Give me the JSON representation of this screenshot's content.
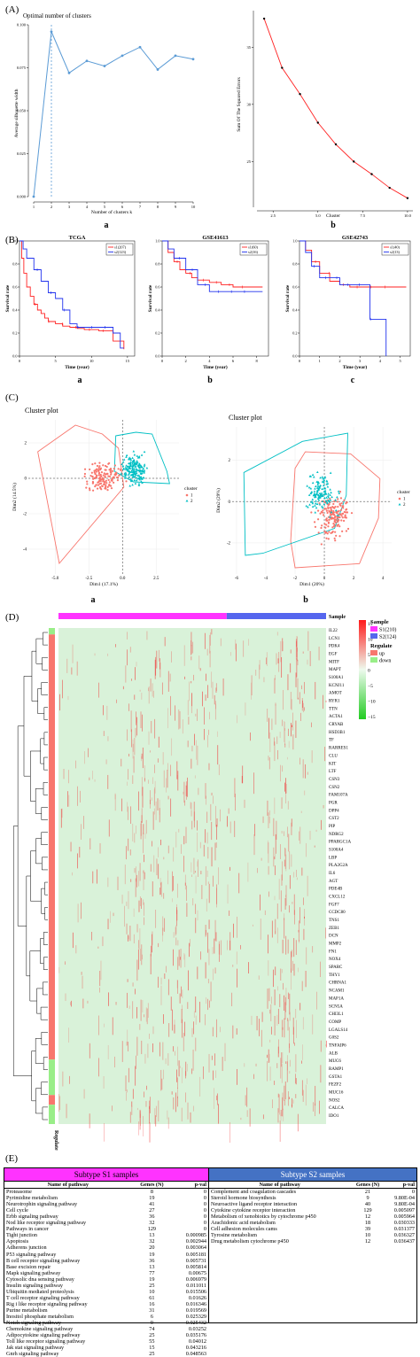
{
  "panel_labels": {
    "A": "(A)",
    "B": "(B)",
    "C": "(C)",
    "D": "(D)",
    "E": "(E)"
  },
  "sub_labels": {
    "a": "a",
    "b": "b",
    "c": "c"
  },
  "colors": {
    "salmon": "#f26d6d",
    "blue_line": "#5b9bd5",
    "red": "#ff2222",
    "blue": "#2233ee",
    "teal": "#00bfc4",
    "s1": "#ff33ff",
    "s2": "#5566ee",
    "up": "#f8766d",
    "down": "#99ee88",
    "heatbg": "#d9f2d9",
    "tab_s1": "#ff33ff",
    "tab_s2": "#4472c4"
  },
  "chart_data": [
    {
      "type": "line",
      "title": "Optimal number of clusters",
      "xlabel": "Number of clusters k",
      "ylabel": "Average silhouette width",
      "x": [
        1,
        2,
        3,
        4,
        5,
        6,
        7,
        8,
        9,
        10
      ],
      "y": [
        0.0,
        0.096,
        0.072,
        0.079,
        0.076,
        0.082,
        0.087,
        0.074,
        0.082,
        0.08
      ],
      "xticks": [
        "1",
        "2",
        "3",
        "4",
        "5",
        "6",
        "7",
        "8",
        "9",
        "10"
      ],
      "yticks": [
        "0.000",
        "0.025",
        "0.050",
        "0.075",
        "0.100"
      ],
      "ylim": [
        0,
        0.1
      ],
      "vline_x": 2
    },
    {
      "type": "line",
      "title": "",
      "xlabel": "Cluster",
      "ylabel": "Sum Of The Squared Errors",
      "x": [
        2,
        3,
        4,
        5,
        6,
        7,
        8,
        9,
        10
      ],
      "y": [
        37.5,
        33.2,
        30.9,
        28.4,
        26.5,
        25.0,
        23.9,
        22.7,
        21.8
      ],
      "xticks": [
        "2.5",
        "5.0",
        "7.5",
        "10.0"
      ],
      "xtick_values": [
        2.5,
        5.0,
        7.5,
        10.0
      ],
      "yticks": [
        "25",
        "30",
        "35"
      ],
      "ytick_values": [
        25,
        30,
        35
      ],
      "xlim": [
        1.6,
        10.3
      ],
      "ylim": [
        21,
        38.2
      ]
    },
    {
      "type": "line",
      "title": "TCGA",
      "xlabel": "Time (year)",
      "ylabel": "Survival rate",
      "xticks": [
        "0",
        "5",
        "10",
        "15"
      ],
      "yticks": [
        "0.0",
        "0.2",
        "0.4",
        "0.6",
        "0.8",
        "1.0"
      ],
      "xlim": [
        0,
        16
      ],
      "ylim": [
        0,
        1
      ],
      "legend": [
        "s1(207)",
        "s2(123)"
      ],
      "series": [
        {
          "name": "s1(207)",
          "x": [
            0,
            0.3,
            0.6,
            1,
            1.5,
            2,
            2.5,
            3,
            3.5,
            4,
            5,
            6,
            7,
            8,
            9,
            10,
            11,
            12,
            13,
            14,
            14.5
          ],
          "y": [
            1,
            0.85,
            0.72,
            0.6,
            0.52,
            0.45,
            0.4,
            0.37,
            0.33,
            0.3,
            0.28,
            0.26,
            0.25,
            0.24,
            0.23,
            0.23,
            0.22,
            0.22,
            0.13,
            0.13,
            0.06
          ]
        },
        {
          "name": "s2(123)",
          "x": [
            0,
            0.5,
            1,
            2,
            3,
            4,
            5,
            6,
            7,
            8,
            9,
            10,
            11,
            12,
            13,
            14,
            14.5
          ],
          "y": [
            1,
            0.93,
            0.85,
            0.75,
            0.65,
            0.55,
            0.5,
            0.4,
            0.28,
            0.25,
            0.25,
            0.25,
            0.25,
            0.25,
            0.2,
            0.07,
            0.07
          ]
        }
      ]
    },
    {
      "type": "line",
      "title": "GSE41613",
      "xlabel": "Time (year)",
      "ylabel": "Survival rate",
      "xticks": [
        "0",
        "2",
        "4",
        "6",
        "8"
      ],
      "yticks": [
        "0.0",
        "0.2",
        "0.4",
        "0.6",
        "0.8",
        "1.0"
      ],
      "xlim": [
        0,
        9
      ],
      "ylim": [
        0,
        1
      ],
      "legend": [
        "s1(60)",
        "s2(16)"
      ],
      "series": [
        {
          "name": "s1(60)",
          "x": [
            0,
            0.5,
            1,
            1.5,
            2,
            2.5,
            3,
            4,
            5,
            6,
            7,
            8.5
          ],
          "y": [
            1,
            0.9,
            0.82,
            0.75,
            0.72,
            0.68,
            0.66,
            0.64,
            0.62,
            0.6,
            0.6,
            0.6
          ]
        },
        {
          "name": "s2(16)",
          "x": [
            0,
            0.5,
            1,
            2,
            3,
            4,
            5,
            6,
            7,
            8.5
          ],
          "y": [
            1,
            0.93,
            0.85,
            0.75,
            0.62,
            0.56,
            0.56,
            0.56,
            0.56,
            0.56
          ]
        }
      ]
    },
    {
      "type": "line",
      "title": "GSE42743",
      "xlabel": "Time (year)",
      "ylabel": "Survival rate",
      "xticks": [
        "0",
        "1",
        "2",
        "3",
        "4",
        "5"
      ],
      "yticks": [
        "0.0",
        "0.2",
        "0.4",
        "0.6",
        "0.8",
        "1.0"
      ],
      "xlim": [
        0,
        5.5
      ],
      "ylim": [
        0,
        1
      ],
      "legend": [
        "s1(40)",
        "s2(13)"
      ],
      "series": [
        {
          "name": "s1(40)",
          "x": [
            0,
            0.3,
            0.6,
            1,
            1.5,
            2,
            2.5,
            3,
            4,
            5.3
          ],
          "y": [
            1,
            0.92,
            0.82,
            0.72,
            0.65,
            0.62,
            0.6,
            0.6,
            0.6,
            0.6
          ]
        },
        {
          "name": "s2(13)",
          "x": [
            0,
            0.3,
            0.6,
            1,
            2,
            3,
            3.5,
            4,
            4.3
          ],
          "y": [
            1,
            0.9,
            0.78,
            0.68,
            0.62,
            0.62,
            0.32,
            0.32,
            0.0
          ]
        }
      ]
    },
    {
      "type": "scatter",
      "title": "Cluster plot",
      "xlabel": "Dim1 (17.1%)",
      "ylabel": "Dim2 (14.5%)",
      "xticks": [
        "-5.0",
        "-2.5",
        "0.0",
        "2.5"
      ],
      "xtick_values": [
        -5,
        -2.5,
        0,
        2.5
      ],
      "yticks": [
        "-4",
        "-2",
        "0",
        "2"
      ],
      "ytick_values": [
        -4,
        -2,
        0,
        2
      ],
      "xlim": [
        -7,
        4.2
      ],
      "ylim": [
        -5.4,
        3.3
      ],
      "legend_title": "cluster",
      "legend": [
        "1",
        "2"
      ],
      "hull1": [
        [
          -6.3,
          1.5
        ],
        [
          -3.5,
          3
        ],
        [
          -1.5,
          2.5
        ],
        [
          -0.3,
          1.7
        ],
        [
          0.1,
          -0.5
        ],
        [
          -4.7,
          -4.8
        ]
      ],
      "hull2": [
        [
          -0.5,
          2.4
        ],
        [
          1,
          2.6
        ],
        [
          2.2,
          2.5
        ],
        [
          3.3,
          0.4
        ],
        [
          3.5,
          -0.3
        ],
        [
          0.8,
          -0.2
        ],
        [
          -0.6,
          0.4
        ]
      ]
    },
    {
      "type": "scatter",
      "title": "Cluster plot",
      "xlabel": "Dim1 (20%)",
      "ylabel": "Dim2 (29%)",
      "xticks": [
        "-6",
        "-4",
        "-2",
        "0",
        "2",
        "4"
      ],
      "xtick_values": [
        -6,
        -4,
        -2,
        0,
        2,
        4
      ],
      "yticks": [
        "-2",
        "0",
        "2"
      ],
      "ytick_values": [
        -2,
        0,
        2
      ],
      "xlim": [
        -6.3,
        4.6
      ],
      "ylim": [
        -3.5,
        3.6
      ],
      "legend_title": "cluster",
      "legend": [
        "1",
        "2"
      ],
      "hull1": [
        [
          -2,
          1.6
        ],
        [
          -1.3,
          2.4
        ],
        [
          1.8,
          2.3
        ],
        [
          3.8,
          1.1
        ],
        [
          3.7,
          -0.8
        ],
        [
          2.4,
          -3
        ],
        [
          -2,
          -3.2
        ],
        [
          -2.3,
          -1.9
        ]
      ],
      "hull2": [
        [
          -5.5,
          1.4
        ],
        [
          -1.5,
          2.9
        ],
        [
          1.6,
          3.3
        ],
        [
          1.5,
          0.3
        ],
        [
          0.7,
          -1.3
        ],
        [
          -4.2,
          -2.5
        ],
        [
          -5.4,
          -2.6
        ]
      ]
    },
    {
      "type": "heatmap",
      "title": "",
      "legend_sample_title": "Sample",
      "legend_sample": [
        "S1(210)",
        "S2(124)"
      ],
      "legend_regulate_title": "Regulate",
      "legend_regulate": [
        "up",
        "down"
      ],
      "colorbar_ticks": [
        "15",
        "10",
        "5",
        "0",
        "−5",
        "−10",
        "−15"
      ],
      "colorbar_values": [
        15,
        10,
        5,
        0,
        -5,
        -10,
        -15
      ],
      "row_annotation_label": "Regulate",
      "col_annotation_label": "Sample",
      "genes": [
        "IL22",
        "LCN1",
        "PDK4",
        "EGF",
        "MITF",
        "MAPT",
        "S100A1",
        "KCNJ11",
        "AMOT",
        "RYR1",
        "TTN",
        "ACTA1",
        "CRYAB",
        "HSD3B1",
        "TF",
        "RARRES1",
        "CLU",
        "KIT",
        "LTF",
        "CSN3",
        "CSN2",
        "FAM107A",
        "PGR",
        "DPP4",
        "CST2",
        "PIP",
        "NDRG2",
        "PPARGC1A",
        "S100A4",
        "LBP",
        "PLA2G2A",
        "IL6",
        "AGT",
        "PDE4B",
        "CXCL12",
        "FGF7",
        "CCDC80",
        "TNS1",
        "ZEB1",
        "DCN",
        "MMP2",
        "FN1",
        "NOX4",
        "SPARC",
        "THY1",
        "CHRNA1",
        "NCAM1",
        "MAP1A",
        "SCN5A",
        "CHI3L1",
        "COMP",
        "LGALS14",
        "G0S2",
        "TNFAIP6",
        "ALB",
        "MUC6",
        "RAMP1",
        "GSTA1",
        "FEZF2",
        "MUC16",
        "NOS2",
        "CALCA",
        "IDO1"
      ]
    }
  ],
  "table_s1": {
    "title": "Subtype S1 samples",
    "headers": [
      "Name of pathway",
      "Genes (N)",
      "p-val"
    ],
    "rows": [
      [
        "Proteasome",
        "8",
        "0"
      ],
      [
        "Pyrimidine metabolism",
        "19",
        "0"
      ],
      [
        "Neurotrophin signaling pathway",
        "41",
        "0"
      ],
      [
        "Cell cycle",
        "27",
        "0"
      ],
      [
        "Erbb signaling pathway",
        "36",
        "0"
      ],
      [
        "Nod like receptor signaling pathway",
        "32",
        "0"
      ],
      [
        "Pathways in cancer",
        "129",
        "0"
      ],
      [
        "Tight junction",
        "13",
        "0.000985"
      ],
      [
        "Apoptosis",
        "32",
        "0.002944"
      ],
      [
        "Adherens junction",
        "20",
        "0.003064"
      ],
      [
        "P53 signaling pathway",
        "19",
        "0.005181"
      ],
      [
        "B cell receptor signaling pathway",
        "36",
        "0.005731"
      ],
      [
        "Base excision repair",
        "13",
        "0.005814"
      ],
      [
        "Mapk signaling pathway",
        "77",
        "0.00675"
      ],
      [
        "Cytosolic dna sensing pathway",
        "19",
        "0.006979"
      ],
      [
        "Insulin signaling pathway",
        "25",
        "0.011011"
      ],
      [
        "Ubiquitin mediated proteolysis",
        "10",
        "0.015506"
      ],
      [
        "T cell receptor signaling pathway",
        "61",
        "0.01626"
      ],
      [
        "Rig i like receptor signaling pathway",
        "16",
        "0.016346"
      ],
      [
        "Purine metabolism",
        "31",
        "0.019569"
      ],
      [
        "Inositol phosphate metabolism",
        "6",
        "0.025329"
      ],
      [
        "Notch signaling pathway",
        "9",
        "0.025432"
      ],
      [
        "Chemokine signaling pathway",
        "74",
        "0.03252"
      ],
      [
        "Adipocytokine signaling pathway",
        "25",
        "0.035176"
      ],
      [
        "Toll like receptor signaling pathway",
        "55",
        "0.04012"
      ],
      [
        "Jak stat signaling pathway",
        "15",
        "0.043216"
      ],
      [
        "Gnrh signaling pathway",
        "25",
        "0.048563"
      ]
    ]
  },
  "table_s2": {
    "title": "Subtype S2 samples",
    "headers": [
      "Name of pathway",
      "Genes (N)",
      "p-val"
    ],
    "rows": [
      [
        "Complement and coagulation cascades",
        "21",
        "0"
      ],
      [
        "Steroid hormone biosynthesis",
        "9",
        "9.80E-04"
      ],
      [
        "Neuroactive ligand receptor interaction",
        "40",
        "9.80E-04"
      ],
      [
        "Cytokine cytokine receptor interaction",
        "129",
        "0.005097"
      ],
      [
        "Metabolism of xenobiotics by cytochrome p450",
        "12",
        "0.005964"
      ],
      [
        "Arachidonic acid metabolism",
        "18",
        "0.030333"
      ],
      [
        "Cell adhesion molecules cams",
        "39",
        "0.031377"
      ],
      [
        "Tyrosine metabolism",
        "10",
        "0.036327"
      ],
      [
        "Drug metabolism cytochrome p450",
        "12",
        "0.036437"
      ]
    ]
  }
}
